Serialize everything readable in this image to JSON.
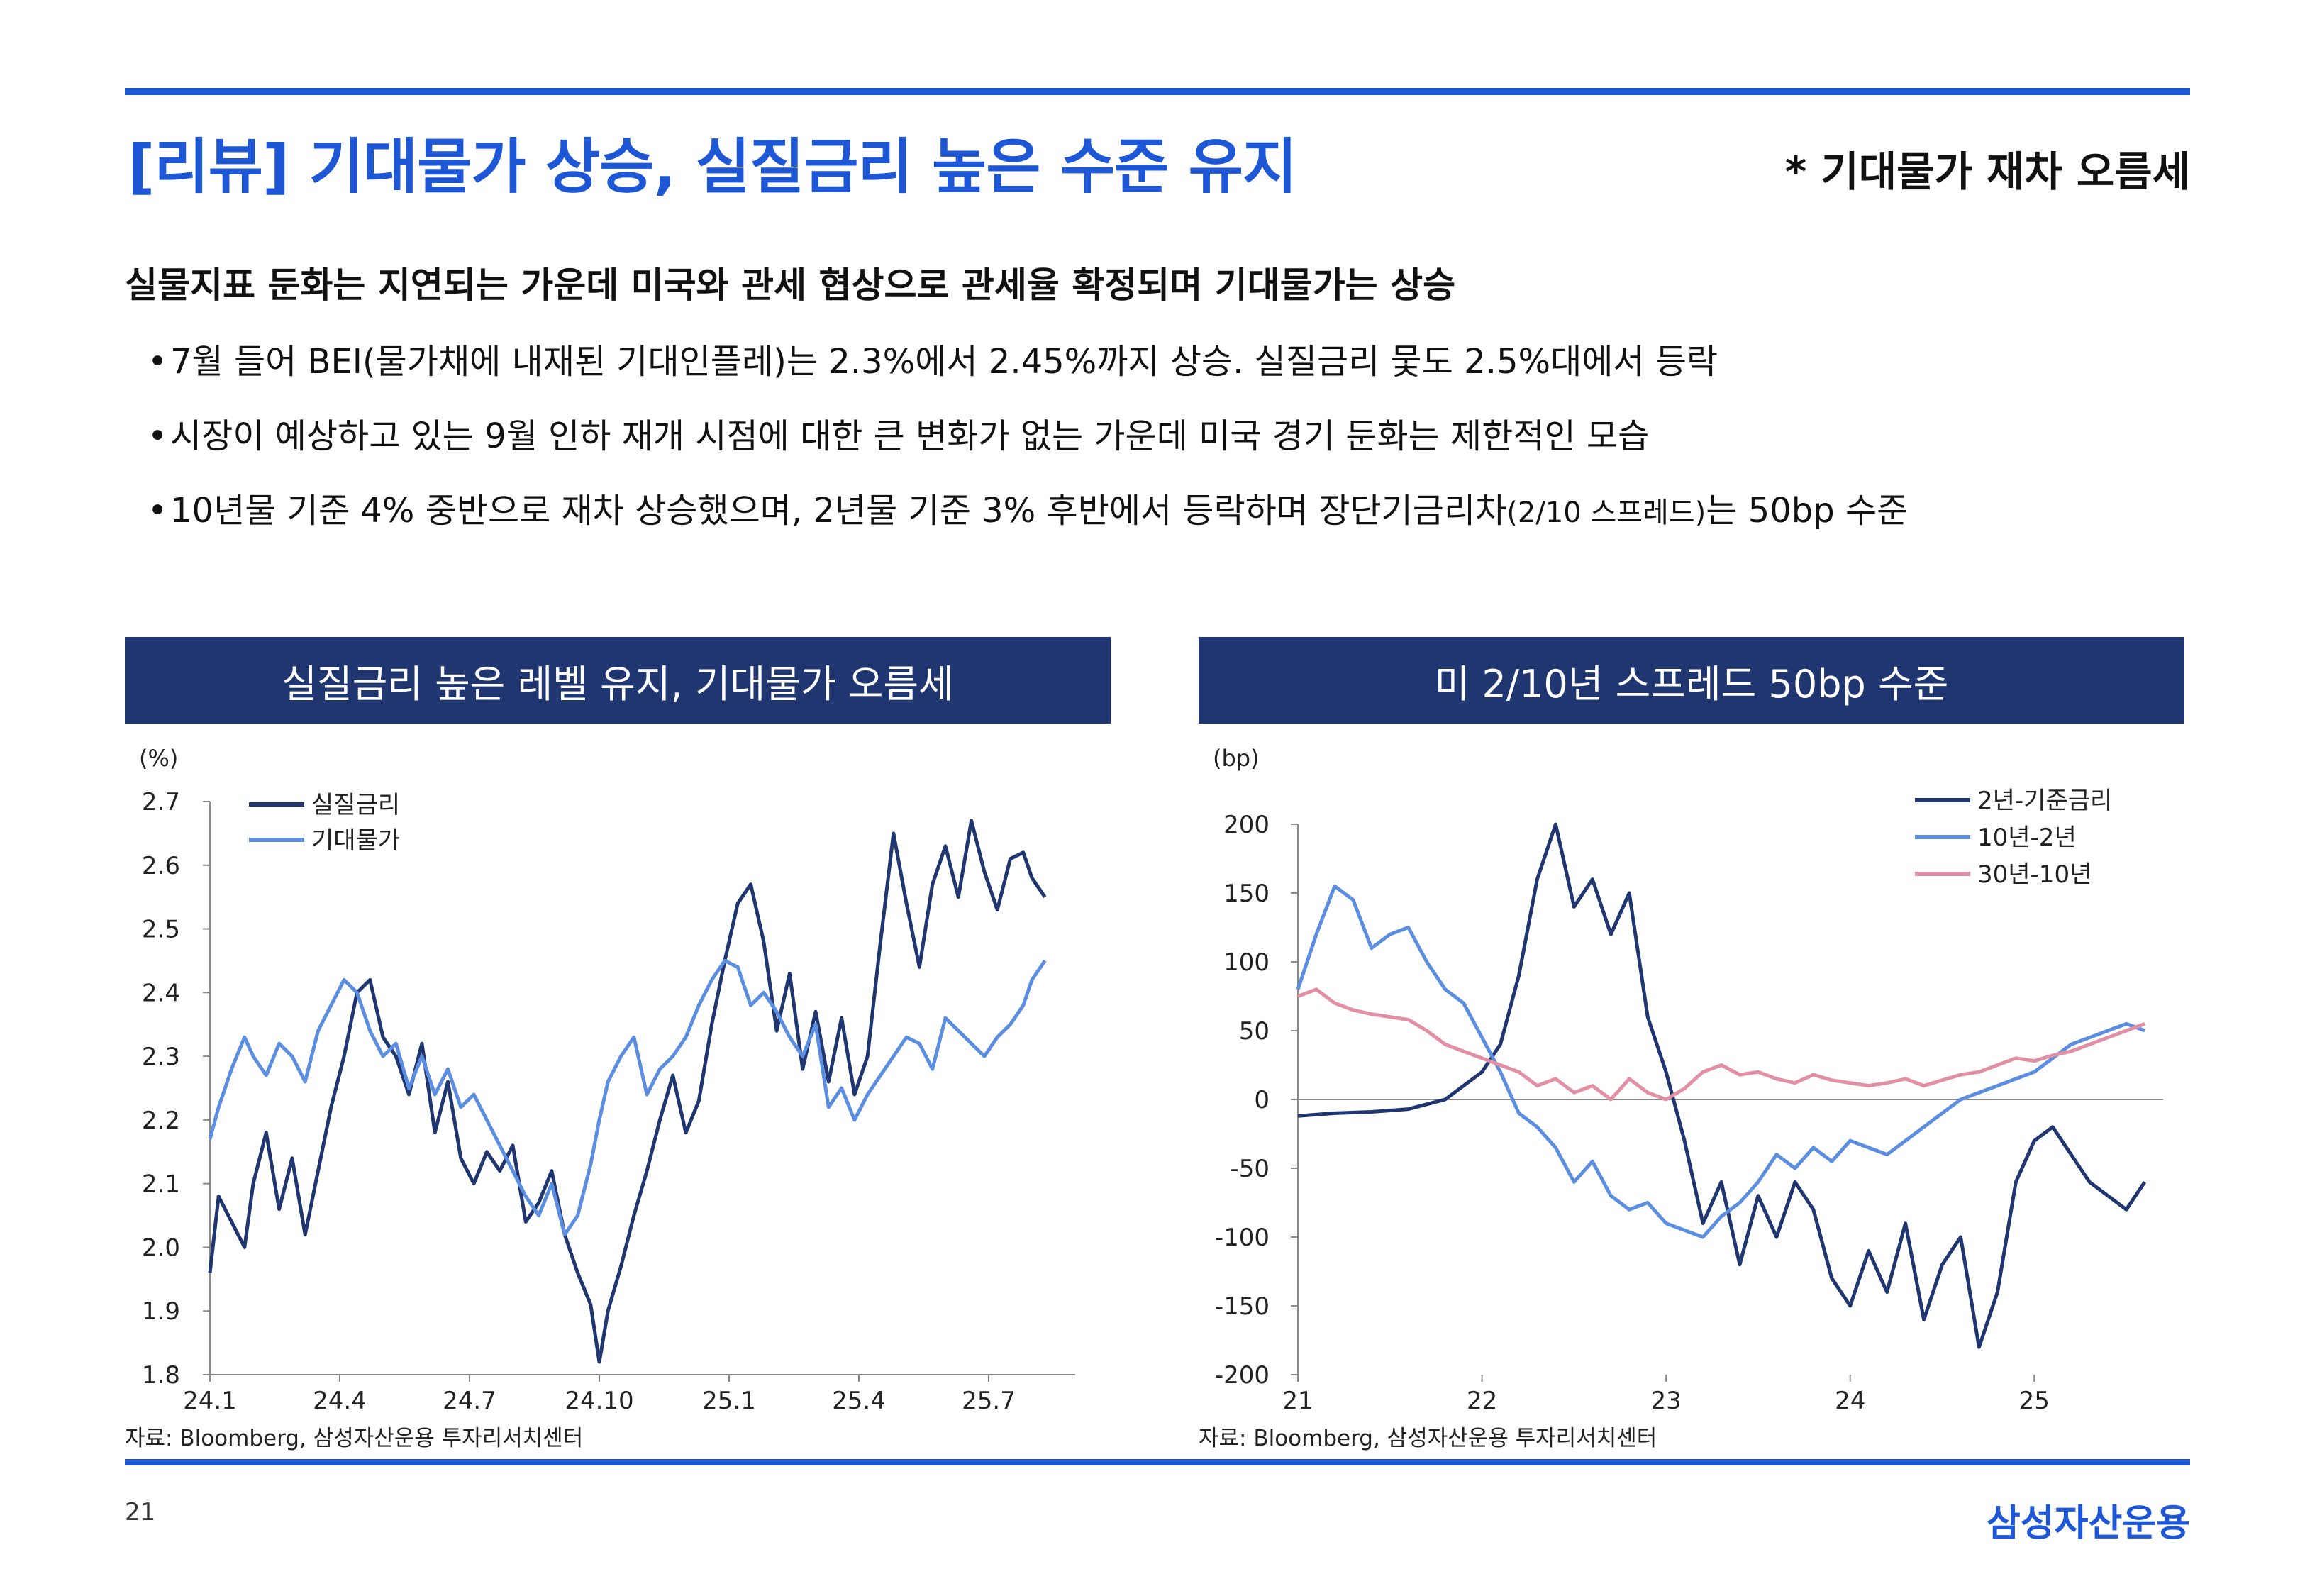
{
  "slide": {
    "title": "[리뷰] 기대물가 상승, 실질금리 높은 수준 유지",
    "tagline": "* 기대물가 재차 오름세",
    "headline": "실물지표 둔화는 지연되는 가운데 미국와 관세 협상으로 관세율 확정되며 기대물가는 상승",
    "bullets": [
      {
        "text": "7월 들어 BEI(물가채에 내재된 기대인플레)는 2.3%에서 2.45%까지 상승. 실질금리 뭋도 2.5%대에서 등락"
      },
      {
        "text": "시장이 예상하고 있는 9월 인하 재개 시점에 대한 큰 변화가 없는 가운데 미국 경기 둔화는 제한적인 모습"
      },
      {
        "text_a": "10년물 기준 4% 중반으로 재차 상승했으며, 2년물 기준 3% 후반에서 등락하며 장단기금리차",
        "text_small": "(2/10 스프레드)",
        "text_b": "는 50bp 수준"
      }
    ],
    "bullet_mark": "•",
    "page_number": "21",
    "brand": "삼성자산운용"
  },
  "colors": {
    "accent": "#1d57d6",
    "header_bg": "#1f3670",
    "navy": "#1f3670",
    "blue": "#5b8de0",
    "pink": "#e28fa3"
  },
  "left_panel": {
    "header": "실질금리 높은 레벨 유지, 기대물가 오름세",
    "source": "자료: Bloomberg, 삼성자산운용 투자리서치센터"
  },
  "right_panel": {
    "header": "미 2/10년 스프레드 50bp 수준",
    "source": "자료: Bloomberg, 삼성자산운용 투자리서치센터"
  },
  "chart_data": [
    {
      "type": "line",
      "unit_label": "(%)",
      "ylim": [
        1.8,
        2.7
      ],
      "yticks": [
        "1.8",
        "1.9",
        "2.0",
        "2.1",
        "2.2",
        "2.3",
        "2.4",
        "2.5",
        "2.6",
        "2.7"
      ],
      "xlim": [
        0,
        20
      ],
      "xticks": [
        {
          "x": 0,
          "label": "24.1"
        },
        {
          "x": 3,
          "label": "24.4"
        },
        {
          "x": 6,
          "label": "24.7"
        },
        {
          "x": 9,
          "label": "24.10"
        },
        {
          "x": 12,
          "label": "25.1"
        },
        {
          "x": 15,
          "label": "25.4"
        },
        {
          "x": 18,
          "label": "25.7"
        }
      ],
      "legend_position": "top-left",
      "series": [
        {
          "name": "실질금리",
          "color": "#1f3670",
          "x": [
            0,
            0.2,
            0.5,
            0.8,
            1.0,
            1.3,
            1.6,
            1.9,
            2.2,
            2.5,
            2.8,
            3.1,
            3.4,
            3.7,
            4.0,
            4.3,
            4.6,
            4.9,
            5.2,
            5.5,
            5.8,
            6.1,
            6.4,
            6.7,
            7.0,
            7.3,
            7.6,
            7.9,
            8.2,
            8.5,
            8.8,
            9.0,
            9.2,
            9.5,
            9.8,
            10.1,
            10.4,
            10.7,
            11.0,
            11.3,
            11.6,
            11.9,
            12.2,
            12.5,
            12.8,
            13.1,
            13.4,
            13.7,
            14.0,
            14.3,
            14.6,
            14.9,
            15.2,
            15.5,
            15.8,
            16.1,
            16.4,
            16.7,
            17.0,
            17.3,
            17.6,
            17.9,
            18.2,
            18.5,
            18.8,
            19.0,
            19.3
          ],
          "y": [
            1.96,
            2.08,
            2.04,
            2.0,
            2.1,
            2.18,
            2.06,
            2.14,
            2.02,
            2.12,
            2.22,
            2.3,
            2.4,
            2.42,
            2.33,
            2.3,
            2.24,
            2.32,
            2.18,
            2.26,
            2.14,
            2.1,
            2.15,
            2.12,
            2.16,
            2.04,
            2.07,
            2.12,
            2.02,
            1.96,
            1.91,
            1.82,
            1.9,
            1.97,
            2.05,
            2.12,
            2.2,
            2.27,
            2.18,
            2.23,
            2.35,
            2.45,
            2.54,
            2.57,
            2.48,
            2.34,
            2.43,
            2.28,
            2.37,
            2.26,
            2.36,
            2.24,
            2.3,
            2.48,
            2.65,
            2.54,
            2.44,
            2.57,
            2.63,
            2.55,
            2.67,
            2.59,
            2.53,
            2.61,
            2.62,
            2.58,
            2.55
          ]
        },
        {
          "name": "기대물가",
          "color": "#5b8de0",
          "x": [
            0,
            0.2,
            0.5,
            0.8,
            1.0,
            1.3,
            1.6,
            1.9,
            2.2,
            2.5,
            2.8,
            3.1,
            3.4,
            3.7,
            4.0,
            4.3,
            4.6,
            4.9,
            5.2,
            5.5,
            5.8,
            6.1,
            6.4,
            6.7,
            7.0,
            7.3,
            7.6,
            7.9,
            8.2,
            8.5,
            8.8,
            9.0,
            9.2,
            9.5,
            9.8,
            10.1,
            10.4,
            10.7,
            11.0,
            11.3,
            11.6,
            11.9,
            12.2,
            12.5,
            12.8,
            13.1,
            13.4,
            13.7,
            14.0,
            14.3,
            14.6,
            14.9,
            15.2,
            15.5,
            15.8,
            16.1,
            16.4,
            16.7,
            17.0,
            17.3,
            17.6,
            17.9,
            18.2,
            18.5,
            18.8,
            19.0,
            19.3
          ],
          "y": [
            2.17,
            2.22,
            2.28,
            2.33,
            2.3,
            2.27,
            2.32,
            2.3,
            2.26,
            2.34,
            2.38,
            2.42,
            2.4,
            2.34,
            2.3,
            2.32,
            2.25,
            2.3,
            2.24,
            2.28,
            2.22,
            2.24,
            2.2,
            2.16,
            2.12,
            2.08,
            2.05,
            2.1,
            2.02,
            2.05,
            2.13,
            2.2,
            2.26,
            2.3,
            2.33,
            2.24,
            2.28,
            2.3,
            2.33,
            2.38,
            2.42,
            2.45,
            2.44,
            2.38,
            2.4,
            2.37,
            2.33,
            2.3,
            2.35,
            2.22,
            2.25,
            2.2,
            2.24,
            2.27,
            2.3,
            2.33,
            2.32,
            2.28,
            2.36,
            2.34,
            2.32,
            2.3,
            2.33,
            2.35,
            2.38,
            2.42,
            2.45
          ]
        }
      ]
    },
    {
      "type": "line",
      "unit_label": "(bp)",
      "ylim": [
        -200,
        200
      ],
      "yticks": [
        "-200",
        "-150",
        "-100",
        "-50",
        "0",
        "50",
        "100",
        "150",
        "200"
      ],
      "xlim": [
        21,
        25.7
      ],
      "xticks": [
        {
          "x": 21,
          "label": "21"
        },
        {
          "x": 22,
          "label": "22"
        },
        {
          "x": 23,
          "label": "23"
        },
        {
          "x": 24,
          "label": "24"
        },
        {
          "x": 25,
          "label": "25"
        }
      ],
      "legend_position": "top-right",
      "series": [
        {
          "name": "2년-기준금리",
          "color": "#1f3670",
          "x": [
            21,
            21.2,
            21.4,
            21.6,
            21.8,
            22.0,
            22.1,
            22.2,
            22.3,
            22.4,
            22.5,
            22.6,
            22.7,
            22.8,
            22.9,
            23.0,
            23.1,
            23.2,
            23.3,
            23.4,
            23.5,
            23.6,
            23.7,
            23.8,
            23.9,
            24.0,
            24.1,
            24.2,
            24.3,
            24.4,
            24.5,
            24.6,
            24.7,
            24.8,
            24.9,
            25.0,
            25.1,
            25.2,
            25.3,
            25.4,
            25.5,
            25.6
          ],
          "y": [
            -12,
            -10,
            -9,
            -7,
            0,
            20,
            40,
            90,
            160,
            200,
            140,
            160,
            120,
            150,
            60,
            20,
            -30,
            -90,
            -60,
            -120,
            -70,
            -100,
            -60,
            -80,
            -130,
            -150,
            -110,
            -140,
            -90,
            -160,
            -120,
            -100,
            -180,
            -140,
            -60,
            -30,
            -20,
            -40,
            -60,
            -70,
            -80,
            -60
          ]
        },
        {
          "name": "10년-2년",
          "color": "#5b8de0",
          "x": [
            21,
            21.1,
            21.2,
            21.3,
            21.4,
            21.5,
            21.6,
            21.7,
            21.8,
            21.9,
            22.0,
            22.1,
            22.2,
            22.3,
            22.4,
            22.5,
            22.6,
            22.7,
            22.8,
            22.9,
            23.0,
            23.1,
            23.2,
            23.3,
            23.4,
            23.5,
            23.6,
            23.7,
            23.8,
            23.9,
            24.0,
            24.1,
            24.2,
            24.3,
            24.4,
            24.5,
            24.6,
            24.7,
            24.8,
            24.9,
            25.0,
            25.1,
            25.2,
            25.3,
            25.4,
            25.5,
            25.6
          ],
          "y": [
            80,
            120,
            155,
            145,
            110,
            120,
            125,
            100,
            80,
            70,
            45,
            20,
            -10,
            -20,
            -35,
            -60,
            -45,
            -70,
            -80,
            -75,
            -90,
            -95,
            -100,
            -85,
            -75,
            -60,
            -40,
            -50,
            -35,
            -45,
            -30,
            -35,
            -40,
            -30,
            -20,
            -10,
            0,
            5,
            10,
            15,
            20,
            30,
            40,
            45,
            50,
            55,
            50
          ]
        },
        {
          "name": "30년-10년",
          "color": "#e28fa3",
          "x": [
            21,
            21.1,
            21.2,
            21.3,
            21.4,
            21.5,
            21.6,
            21.7,
            21.8,
            21.9,
            22.0,
            22.1,
            22.2,
            22.3,
            22.4,
            22.5,
            22.6,
            22.7,
            22.8,
            22.9,
            23.0,
            23.1,
            23.2,
            23.3,
            23.4,
            23.5,
            23.6,
            23.7,
            23.8,
            23.9,
            24.0,
            24.1,
            24.2,
            24.3,
            24.4,
            24.5,
            24.6,
            24.7,
            24.8,
            24.9,
            25.0,
            25.1,
            25.2,
            25.3,
            25.4,
            25.5,
            25.6
          ],
          "y": [
            75,
            80,
            70,
            65,
            62,
            60,
            58,
            50,
            40,
            35,
            30,
            25,
            20,
            10,
            15,
            5,
            10,
            0,
            15,
            5,
            0,
            8,
            20,
            25,
            18,
            20,
            15,
            12,
            18,
            14,
            12,
            10,
            12,
            15,
            10,
            14,
            18,
            20,
            25,
            30,
            28,
            32,
            35,
            40,
            45,
            50,
            55
          ]
        }
      ]
    }
  ]
}
